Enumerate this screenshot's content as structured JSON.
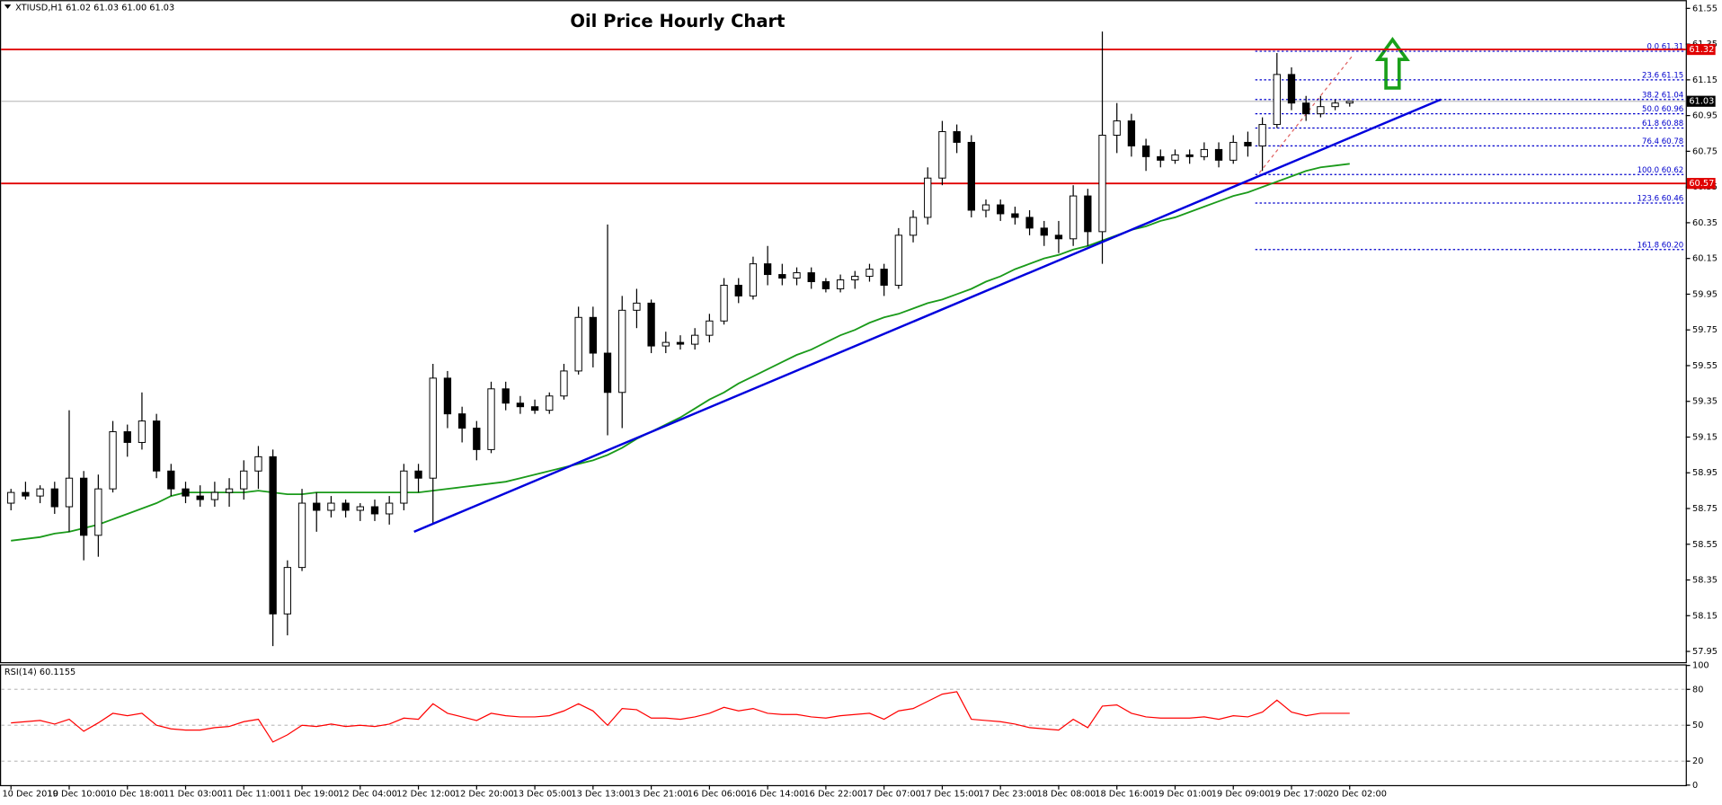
{
  "chart_data": {
    "type": "candlestick",
    "title": "Oil Price Hourly Chart",
    "header": "XTIUSD,H1  61.02 61.03 61.00 61.03",
    "categories": [
      "10 Dec 2019",
      null,
      null,
      null,
      "10 Dec 10:00",
      null,
      null,
      null,
      "10 Dec 18:00",
      null,
      null,
      null,
      "11 Dec 03:00",
      null,
      null,
      null,
      "11 Dec 11:00",
      null,
      null,
      null,
      "11 Dec 19:00",
      null,
      null,
      null,
      "12 Dec 04:00",
      null,
      null,
      null,
      "12 Dec 12:00",
      null,
      null,
      null,
      "12 Dec 20:00",
      null,
      null,
      null,
      "13 Dec 05:00",
      null,
      null,
      null,
      "13 Dec 13:00",
      null,
      null,
      null,
      "13 Dec 21:00",
      null,
      null,
      null,
      "16 Dec 06:00",
      null,
      null,
      null,
      "16 Dec 14:00",
      null,
      null,
      null,
      "16 Dec 22:00",
      null,
      null,
      null,
      "17 Dec 07:00",
      null,
      null,
      null,
      "17 Dec 15:00",
      null,
      null,
      null,
      "17 Dec 23:00",
      null,
      null,
      null,
      "18 Dec 08:00",
      null,
      null,
      null,
      "18 Dec 16:00",
      null,
      null,
      null,
      "19 Dec 01:00",
      null,
      null,
      null,
      "19 Dec 09:00",
      null,
      null,
      null,
      "19 Dec 17:00",
      null,
      null,
      null,
      "20 Dec 02:00"
    ],
    "candles": [
      [
        58.78,
        58.86,
        58.74,
        58.84
      ],
      [
        58.84,
        58.9,
        58.8,
        58.82
      ],
      [
        58.82,
        58.88,
        58.78,
        58.86
      ],
      [
        58.86,
        58.9,
        58.72,
        58.76
      ],
      [
        58.76,
        59.3,
        58.62,
        58.92
      ],
      [
        58.92,
        58.96,
        58.46,
        58.6
      ],
      [
        58.6,
        58.94,
        58.48,
        58.86
      ],
      [
        58.86,
        59.24,
        58.84,
        59.18
      ],
      [
        59.18,
        59.22,
        59.04,
        59.12
      ],
      [
        59.12,
        59.4,
        59.08,
        59.24
      ],
      [
        59.24,
        59.28,
        58.92,
        58.96
      ],
      [
        58.96,
        59.0,
        58.82,
        58.86
      ],
      [
        58.86,
        58.9,
        58.78,
        58.82
      ],
      [
        58.82,
        58.88,
        58.76,
        58.8
      ],
      [
        58.8,
        58.9,
        58.76,
        58.84
      ],
      [
        58.84,
        58.92,
        58.76,
        58.86
      ],
      [
        58.86,
        59.02,
        58.8,
        58.96
      ],
      [
        58.96,
        59.1,
        58.86,
        59.04
      ],
      [
        59.04,
        59.08,
        57.98,
        58.16
      ],
      [
        58.16,
        58.46,
        58.04,
        58.42
      ],
      [
        58.42,
        58.86,
        58.4,
        58.78
      ],
      [
        58.78,
        58.84,
        58.62,
        58.74
      ],
      [
        58.74,
        58.82,
        58.7,
        58.78
      ],
      [
        58.78,
        58.8,
        58.7,
        58.74
      ],
      [
        58.74,
        58.78,
        58.68,
        58.76
      ],
      [
        58.76,
        58.8,
        58.68,
        58.72
      ],
      [
        58.72,
        58.82,
        58.66,
        58.78
      ],
      [
        58.78,
        59.0,
        58.74,
        58.96
      ],
      [
        58.96,
        59.0,
        58.84,
        58.92
      ],
      [
        58.92,
        59.56,
        58.66,
        59.48
      ],
      [
        59.48,
        59.52,
        59.2,
        59.28
      ],
      [
        59.28,
        59.32,
        59.12,
        59.2
      ],
      [
        59.2,
        59.24,
        59.02,
        59.08
      ],
      [
        59.08,
        59.46,
        59.06,
        59.42
      ],
      [
        59.42,
        59.46,
        59.3,
        59.34
      ],
      [
        59.34,
        59.38,
        59.28,
        59.32
      ],
      [
        59.32,
        59.36,
        59.28,
        59.3
      ],
      [
        59.3,
        59.4,
        59.28,
        59.38
      ],
      [
        59.38,
        59.56,
        59.36,
        59.52
      ],
      [
        59.52,
        59.88,
        59.5,
        59.82
      ],
      [
        59.82,
        59.88,
        59.54,
        59.62
      ],
      [
        59.62,
        60.34,
        59.16,
        59.4
      ],
      [
        59.4,
        59.94,
        59.2,
        59.86
      ],
      [
        59.86,
        59.98,
        59.76,
        59.9
      ],
      [
        59.9,
        59.92,
        59.62,
        59.66
      ],
      [
        59.66,
        59.74,
        59.62,
        59.68
      ],
      [
        59.68,
        59.72,
        59.64,
        59.67
      ],
      [
        59.67,
        59.76,
        59.64,
        59.72
      ],
      [
        59.72,
        59.84,
        59.68,
        59.8
      ],
      [
        59.8,
        60.04,
        59.78,
        60.0
      ],
      [
        60.0,
        60.04,
        59.9,
        59.94
      ],
      [
        59.94,
        60.16,
        59.92,
        60.12
      ],
      [
        60.12,
        60.22,
        60.0,
        60.06
      ],
      [
        60.06,
        60.12,
        60.0,
        60.04
      ],
      [
        60.04,
        60.1,
        60.0,
        60.07
      ],
      [
        60.07,
        60.1,
        59.98,
        60.02
      ],
      [
        60.02,
        60.04,
        59.96,
        59.98
      ],
      [
        59.98,
        60.06,
        59.96,
        60.03
      ],
      [
        60.03,
        60.08,
        59.98,
        60.05
      ],
      [
        60.05,
        60.12,
        60.02,
        60.09
      ],
      [
        60.09,
        60.12,
        59.94,
        60.0
      ],
      [
        60.0,
        60.32,
        59.98,
        60.28
      ],
      [
        60.28,
        60.42,
        60.24,
        60.38
      ],
      [
        60.38,
        60.66,
        60.34,
        60.6
      ],
      [
        60.6,
        60.92,
        60.56,
        60.86
      ],
      [
        60.86,
        60.9,
        60.74,
        60.8
      ],
      [
        60.8,
        60.84,
        60.38,
        60.42
      ],
      [
        60.42,
        60.48,
        60.38,
        60.45
      ],
      [
        60.45,
        60.48,
        60.36,
        60.4
      ],
      [
        60.4,
        60.44,
        60.34,
        60.38
      ],
      [
        60.38,
        60.42,
        60.28,
        60.32
      ],
      [
        60.32,
        60.36,
        60.22,
        60.28
      ],
      [
        60.28,
        60.36,
        60.18,
        60.26
      ],
      [
        60.26,
        60.56,
        60.22,
        60.5
      ],
      [
        60.5,
        60.54,
        60.22,
        60.3
      ],
      [
        60.3,
        61.42,
        60.12,
        60.84
      ],
      [
        60.84,
        61.02,
        60.74,
        60.92
      ],
      [
        60.92,
        60.96,
        60.72,
        60.78
      ],
      [
        60.78,
        60.82,
        60.64,
        60.72
      ],
      [
        60.72,
        60.76,
        60.66,
        60.7
      ],
      [
        60.7,
        60.76,
        60.68,
        60.73
      ],
      [
        60.73,
        60.76,
        60.68,
        60.72
      ],
      [
        60.72,
        60.8,
        60.7,
        60.76
      ],
      [
        60.76,
        60.8,
        60.66,
        60.7
      ],
      [
        60.7,
        60.84,
        60.68,
        60.8
      ],
      [
        60.8,
        60.86,
        60.72,
        60.78
      ],
      [
        60.78,
        60.94,
        60.64,
        60.9
      ],
      [
        60.9,
        61.3,
        60.88,
        61.18
      ],
      [
        61.18,
        61.22,
        60.98,
        61.02
      ],
      [
        61.02,
        61.06,
        60.92,
        60.96
      ],
      [
        60.96,
        61.06,
        60.94,
        61.0
      ],
      [
        61.0,
        61.04,
        60.98,
        61.02
      ],
      [
        61.02,
        61.03,
        61.0,
        61.03
      ]
    ],
    "ma": {
      "color": "#1a9a1a",
      "values": [
        58.57,
        58.58,
        58.59,
        58.61,
        58.62,
        58.64,
        58.66,
        58.69,
        58.72,
        58.75,
        58.78,
        58.82,
        58.84,
        58.84,
        58.84,
        58.84,
        58.84,
        58.85,
        58.84,
        58.83,
        58.83,
        58.84,
        58.84,
        58.84,
        58.84,
        58.84,
        58.84,
        58.84,
        58.84,
        58.85,
        58.86,
        58.87,
        58.88,
        58.89,
        58.9,
        58.92,
        58.94,
        58.96,
        58.98,
        59.0,
        59.02,
        59.05,
        59.09,
        59.14,
        59.18,
        59.22,
        59.26,
        59.31,
        59.36,
        59.4,
        59.45,
        59.49,
        59.53,
        59.57,
        59.61,
        59.64,
        59.68,
        59.72,
        59.75,
        59.79,
        59.82,
        59.84,
        59.87,
        59.9,
        59.92,
        59.95,
        59.98,
        60.02,
        60.05,
        60.09,
        60.12,
        60.15,
        60.17,
        60.2,
        60.22,
        60.25,
        60.28,
        60.31,
        60.33,
        60.36,
        60.38,
        60.41,
        60.44,
        60.47,
        60.5,
        60.52,
        60.55,
        60.58,
        60.61,
        60.64,
        60.66,
        60.67,
        60.68
      ]
    },
    "trend_line": {
      "color": "#0000dd",
      "values": [
        58.62,
        61.04
      ]
    },
    "ylim": [
      57.89,
      61.59
    ],
    "yticks": [
      61.55,
      61.35,
      61.15,
      60.95,
      60.75,
      60.55,
      60.35,
      60.15,
      59.95,
      59.75,
      59.55,
      59.35,
      59.15,
      58.95,
      58.75,
      58.55,
      58.35,
      58.15,
      57.95
    ],
    "hlines": [
      {
        "value": 61.32,
        "color": "#e00000"
      },
      {
        "value": 60.57,
        "color": "#e00000"
      }
    ],
    "current_price": 61.03,
    "fib_levels": [
      {
        "value": 61.31,
        "label": "0.0 61.31"
      },
      {
        "value": 61.15,
        "label": "23.6 61.15"
      },
      {
        "value": 61.04,
        "label": "38.2 61.04"
      },
      {
        "value": 60.96,
        "label": "50.0 60.96"
      },
      {
        "value": 60.88,
        "label": "61.8 60.88"
      },
      {
        "value": 60.78,
        "label": "76.4 60.78"
      },
      {
        "value": 60.62,
        "label": "100.0 60.62"
      },
      {
        "value": 60.46,
        "label": "123.6 60.46"
      },
      {
        "value": 60.2,
        "label": "161.8 60.20"
      }
    ],
    "rsi": {
      "label": "RSI(14) 60.1155",
      "color": "#ff0000",
      "ylim": [
        0,
        100
      ],
      "yticks": [
        100,
        80,
        50,
        20,
        0
      ],
      "levels": [
        80,
        50,
        20
      ],
      "values": [
        52,
        53,
        54,
        51,
        55,
        45,
        52,
        60,
        58,
        60,
        50,
        47,
        46,
        46,
        48,
        49,
        53,
        55,
        36,
        42,
        50,
        49,
        51,
        49,
        50,
        49,
        51,
        56,
        55,
        68,
        60,
        57,
        54,
        60,
        58,
        57,
        57,
        58,
        62,
        68,
        62,
        50,
        64,
        63,
        56,
        56,
        55,
        57,
        60,
        65,
        62,
        64,
        60,
        59,
        59,
        57,
        56,
        58,
        59,
        60,
        55,
        62,
        64,
        70,
        76,
        78,
        55,
        54,
        53,
        51,
        48,
        47,
        46,
        55,
        48,
        66,
        67,
        60,
        57,
        56,
        56,
        56,
        57,
        55,
        58,
        57,
        61,
        71,
        61,
        58,
        60,
        60,
        60
      ]
    }
  }
}
